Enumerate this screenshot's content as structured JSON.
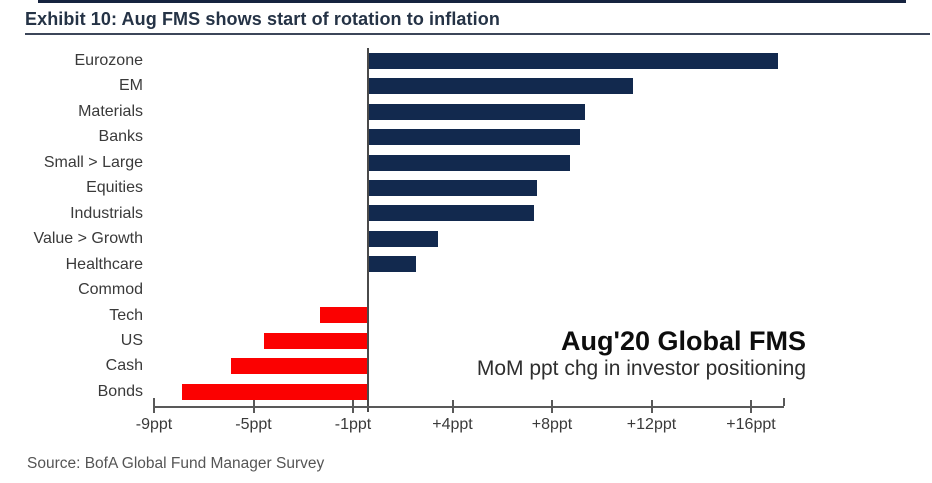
{
  "header": {
    "title": "Exhibit 10: Aug FMS shows start of rotation to inflation"
  },
  "chart_data": {
    "type": "bar",
    "orientation": "horizontal",
    "title": "Aug'20 Global FMS",
    "subtitle": "MoM ppt chg in investor positioning",
    "categories": [
      "Eurozone",
      "EM",
      "Materials",
      "Banks",
      "Small > Large",
      "Equities",
      "Industrials",
      "Value > Growth",
      "Healthcare",
      "Commod",
      "Tech",
      "US",
      "Cash",
      "Bonds"
    ],
    "values": [
      17,
      11,
      9,
      8.8,
      8.4,
      7,
      6.9,
      2.9,
      2,
      0,
      -2,
      -4.3,
      -5.7,
      -7.7
    ],
    "x_tick_labels": [
      "-9ppt",
      "-5ppt",
      "-1ppt",
      "+4ppt",
      "+8ppt",
      "+12ppt",
      "+16ppt"
    ],
    "xlim": [
      -8.9,
      17.2
    ],
    "xlabel": "",
    "ylabel": "",
    "grid": "off",
    "legend": "none",
    "positive_color": "#12294e",
    "negative_color": "#fb0101"
  },
  "footer": {
    "source": "Source: BofA Global Fund Manager Survey"
  }
}
